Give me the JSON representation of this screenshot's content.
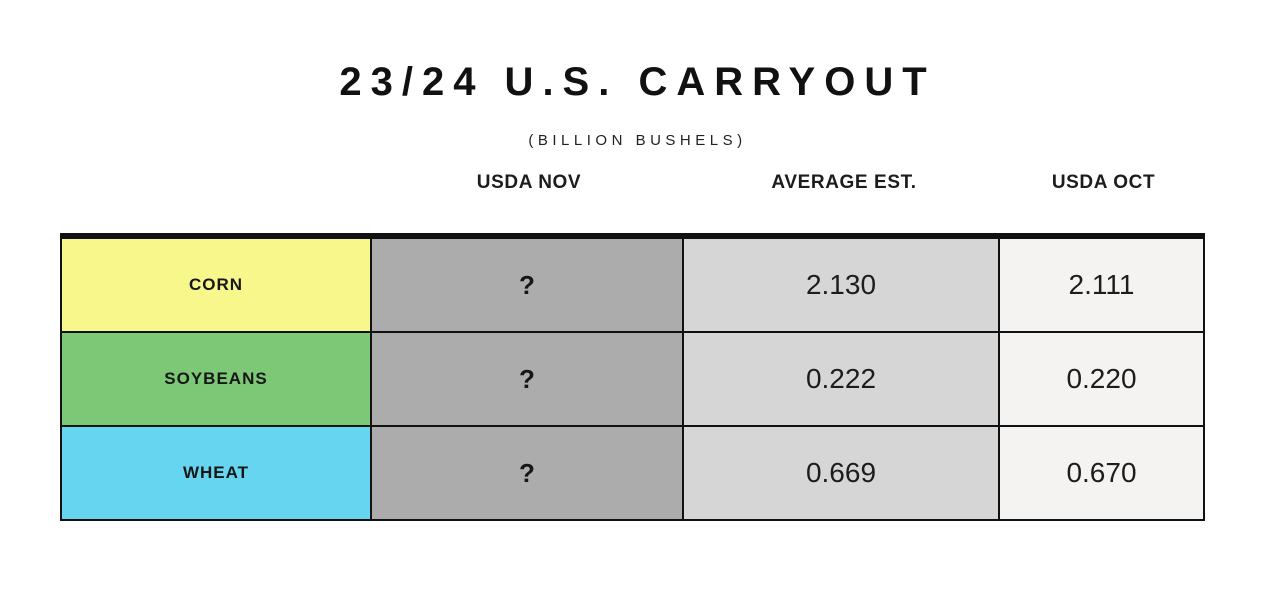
{
  "page": {
    "title": "23/24 U.S. CARRYOUT",
    "subtitle": "(BILLION BUSHELS)"
  },
  "table": {
    "columns": [
      "USDA NOV",
      "AVERAGE EST.",
      "USDA OCT"
    ],
    "rows": [
      {
        "label": "CORN",
        "usda_nov": "?",
        "average_est": "2.130",
        "usda_oct": "2.111",
        "color": "#F7F78C"
      },
      {
        "label": "SOYBEANS",
        "usda_nov": "?",
        "average_est": "0.222",
        "usda_oct": "0.220",
        "color": "#7DC877"
      },
      {
        "label": "WHEAT",
        "usda_nov": "?",
        "average_est": "0.669",
        "usda_oct": "0.670",
        "color": "#66D5F0"
      }
    ],
    "cell_colors": {
      "usda_nov_bg": "#ACACAC",
      "average_est_bg": "#D6D6D6",
      "usda_oct_bg": "#F5F3F1"
    }
  },
  "chart_data": {
    "type": "table",
    "title": "23/24 U.S. CARRYOUT",
    "subtitle": "(BILLION BUSHELS)",
    "categories": [
      "CORN",
      "SOYBEANS",
      "WHEAT"
    ],
    "series": [
      {
        "name": "USDA NOV",
        "values": [
          "?",
          "?",
          "?"
        ]
      },
      {
        "name": "AVERAGE EST.",
        "values": [
          2.13,
          0.222,
          0.669
        ]
      },
      {
        "name": "USDA OCT",
        "values": [
          2.111,
          0.22,
          0.67
        ]
      }
    ]
  }
}
